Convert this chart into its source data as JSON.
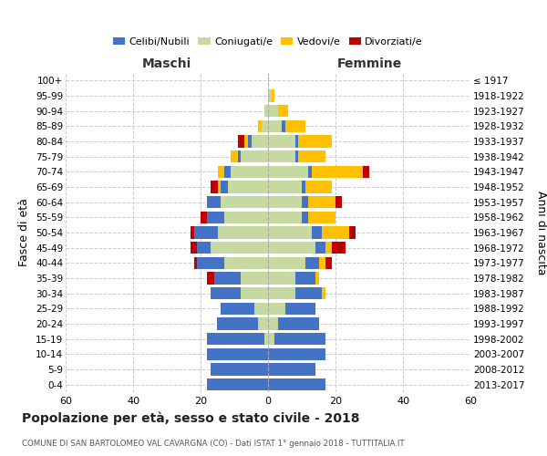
{
  "age_groups": [
    "0-4",
    "5-9",
    "10-14",
    "15-19",
    "20-24",
    "25-29",
    "30-34",
    "35-39",
    "40-44",
    "45-49",
    "50-54",
    "55-59",
    "60-64",
    "65-69",
    "70-74",
    "75-79",
    "80-84",
    "85-89",
    "90-94",
    "95-99",
    "100+"
  ],
  "birth_years": [
    "2013-2017",
    "2008-2012",
    "2003-2007",
    "1998-2002",
    "1993-1997",
    "1988-1992",
    "1983-1987",
    "1978-1982",
    "1973-1977",
    "1968-1972",
    "1963-1967",
    "1958-1962",
    "1953-1957",
    "1948-1952",
    "1943-1947",
    "1938-1942",
    "1933-1937",
    "1928-1932",
    "1923-1927",
    "1918-1922",
    "≤ 1917"
  ],
  "colors": {
    "celibi": "#4472c4",
    "coniugati": "#c5d9a0",
    "vedovi": "#ffc000",
    "divorziati": "#c00000"
  },
  "maschi": {
    "celibi": [
      18,
      17,
      18,
      17,
      12,
      10,
      9,
      8,
      8,
      4,
      7,
      5,
      4,
      2,
      2,
      1,
      1,
      0,
      0,
      0,
      0
    ],
    "coniugati": [
      0,
      0,
      0,
      1,
      3,
      4,
      8,
      8,
      13,
      17,
      15,
      13,
      14,
      12,
      11,
      8,
      5,
      2,
      1,
      0,
      0
    ],
    "vedovi": [
      0,
      0,
      0,
      0,
      0,
      0,
      0,
      0,
      0,
      0,
      0,
      0,
      0,
      1,
      2,
      2,
      1,
      1,
      0,
      0,
      0
    ],
    "divorziati": [
      0,
      0,
      0,
      0,
      0,
      0,
      0,
      2,
      1,
      2,
      1,
      2,
      0,
      2,
      0,
      0,
      2,
      0,
      0,
      0,
      0
    ]
  },
  "femmine": {
    "nubili": [
      17,
      14,
      17,
      15,
      12,
      9,
      8,
      6,
      4,
      3,
      3,
      2,
      2,
      1,
      1,
      1,
      1,
      1,
      0,
      0,
      0
    ],
    "coniugate": [
      0,
      0,
      0,
      2,
      3,
      5,
      8,
      8,
      11,
      14,
      13,
      10,
      10,
      10,
      12,
      8,
      8,
      4,
      3,
      1,
      0
    ],
    "vedove": [
      0,
      0,
      0,
      0,
      0,
      0,
      1,
      1,
      2,
      2,
      8,
      8,
      8,
      8,
      15,
      8,
      10,
      6,
      3,
      1,
      0
    ],
    "divorziate": [
      0,
      0,
      0,
      0,
      0,
      0,
      0,
      0,
      2,
      4,
      2,
      0,
      2,
      0,
      2,
      0,
      0,
      0,
      0,
      0,
      0
    ]
  },
  "xlim": 60,
  "title": "Popolazione per età, sesso e stato civile - 2018",
  "subtitle": "COMUNE DI SAN BARTOLOMEO VAL CAVARGNA (CO) - Dati ISTAT 1° gennaio 2018 - TUTTITALIA.IT",
  "ylabel_left": "Fasce di età",
  "ylabel_right": "Anni di nascita",
  "maschi_label": "Maschi",
  "femmine_label": "Femmine",
  "legend_labels": [
    "Celibi/Nubili",
    "Coniugati/e",
    "Vedovi/e",
    "Divorziati/e"
  ],
  "bg_color": "#ffffff",
  "grid_color": "#cccccc"
}
